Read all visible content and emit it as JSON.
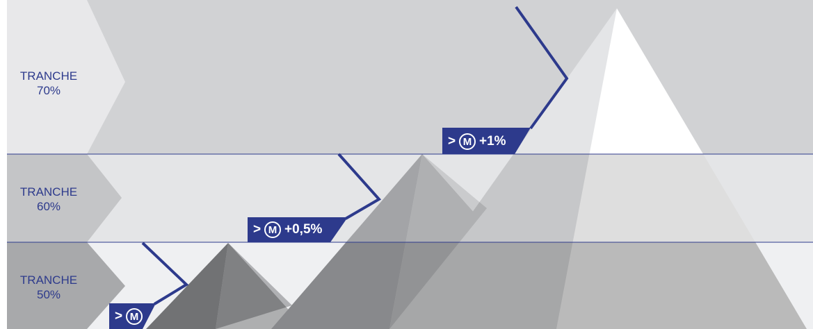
{
  "bands": [
    {
      "line1": "TRANCHE",
      "line2": "70%",
      "badge": {
        "prefix": ">",
        "symbol": "M",
        "suffix": "+1%"
      }
    },
    {
      "line1": "TRANCHE",
      "line2": "60%",
      "badge": {
        "prefix": ">",
        "symbol": "M",
        "suffix": "+0,5%"
      }
    },
    {
      "line1": "TRANCHE",
      "line2": "50%",
      "badge": {
        "prefix": ">",
        "symbol": "M"
      }
    }
  ]
}
